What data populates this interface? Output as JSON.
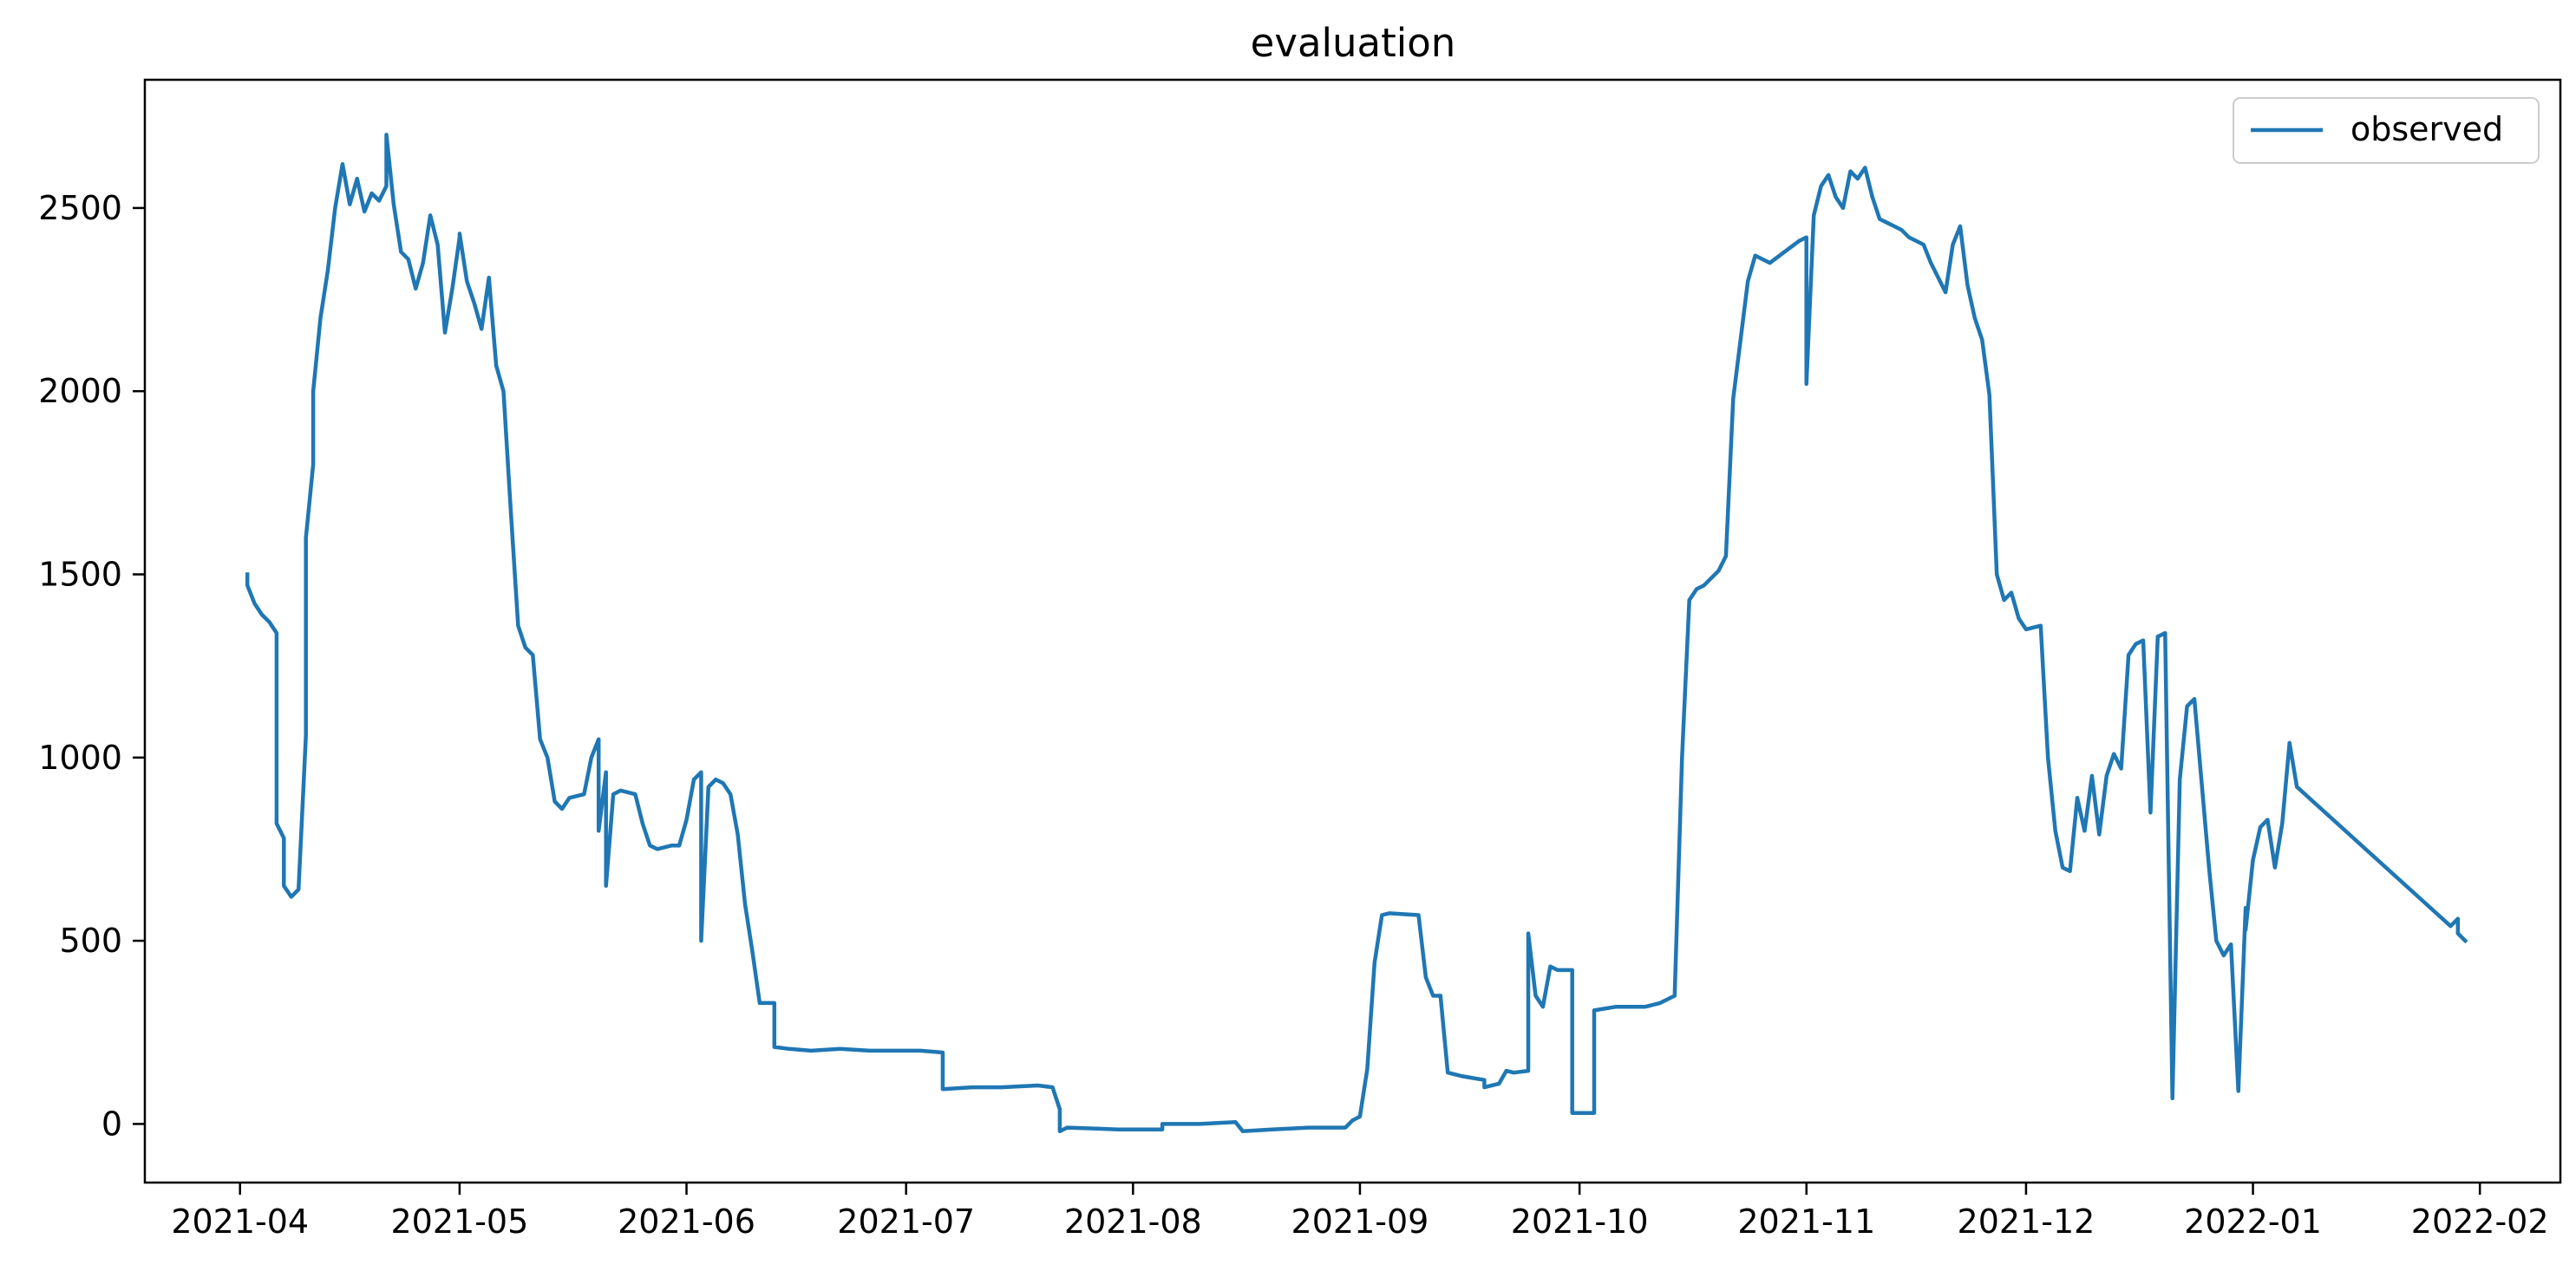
{
  "chart_data": {
    "type": "line",
    "title": "evaluation",
    "xlabel": "",
    "ylabel": "",
    "x_axis": "date",
    "xlim": [
      "2021-03-19",
      "2022-02-12"
    ],
    "ylim": [
      -160,
      2850
    ],
    "x_ticks": [
      "2021-04",
      "2021-05",
      "2021-06",
      "2021-07",
      "2021-08",
      "2021-09",
      "2021-10",
      "2021-11",
      "2021-12",
      "2022-01",
      "2022-02"
    ],
    "y_ticks": [
      0,
      500,
      1000,
      1500,
      2000,
      2500
    ],
    "grid": false,
    "legend": {
      "position": "upper right",
      "entries": [
        "observed"
      ]
    },
    "series": [
      {
        "name": "observed",
        "color": "#1f77b4",
        "points": [
          [
            "2021-04-02",
            1500
          ],
          [
            "2021-04-02",
            1500
          ],
          [
            "2021-04-02",
            1470
          ],
          [
            "2021-04-03",
            1420
          ],
          [
            "2021-04-04",
            1390
          ],
          [
            "2021-04-05",
            1370
          ],
          [
            "2021-04-06",
            1340
          ],
          [
            "2021-04-06",
            820
          ],
          [
            "2021-04-07",
            780
          ],
          [
            "2021-04-07",
            650
          ],
          [
            "2021-04-08",
            620
          ],
          [
            "2021-04-09",
            640
          ],
          [
            "2021-04-10",
            1060
          ],
          [
            "2021-04-10",
            1600
          ],
          [
            "2021-04-11",
            1800
          ],
          [
            "2021-04-11",
            2000
          ],
          [
            "2021-04-12",
            2200
          ],
          [
            "2021-04-13",
            2330
          ],
          [
            "2021-04-14",
            2500
          ],
          [
            "2021-04-15",
            2620
          ],
          [
            "2021-04-16",
            2510
          ],
          [
            "2021-04-17",
            2580
          ],
          [
            "2021-04-18",
            2490
          ],
          [
            "2021-04-19",
            2540
          ],
          [
            "2021-04-20",
            2520
          ],
          [
            "2021-04-21",
            2560
          ],
          [
            "2021-04-21",
            2700
          ],
          [
            "2021-04-22",
            2510
          ],
          [
            "2021-04-23",
            2380
          ],
          [
            "2021-04-24",
            2360
          ],
          [
            "2021-04-25",
            2280
          ],
          [
            "2021-04-26",
            2350
          ],
          [
            "2021-04-27",
            2480
          ],
          [
            "2021-04-28",
            2400
          ],
          [
            "2021-04-29",
            2160
          ],
          [
            "2021-04-30",
            2280
          ],
          [
            "2021-04-31",
            2420
          ],
          [
            "2021-05-01",
            2430
          ],
          [
            "2021-05-02",
            2300
          ],
          [
            "2021-05-03",
            2240
          ],
          [
            "2021-05-04",
            2170
          ],
          [
            "2021-05-05",
            2310
          ],
          [
            "2021-05-06",
            2070
          ],
          [
            "2021-05-07",
            2000
          ],
          [
            "2021-05-08",
            1670
          ],
          [
            "2021-05-09",
            1360
          ],
          [
            "2021-05-10",
            1300
          ],
          [
            "2021-05-11",
            1280
          ],
          [
            "2021-05-12",
            1050
          ],
          [
            "2021-05-13",
            1000
          ],
          [
            "2021-05-14",
            880
          ],
          [
            "2021-05-15",
            860
          ],
          [
            "2021-05-16",
            890
          ],
          [
            "2021-05-18",
            900
          ],
          [
            "2021-05-19",
            1000
          ],
          [
            "2021-05-20",
            1050
          ],
          [
            "2021-05-20",
            800
          ],
          [
            "2021-05-21",
            960
          ],
          [
            "2021-05-21",
            650
          ],
          [
            "2021-05-22",
            900
          ],
          [
            "2021-05-23",
            910
          ],
          [
            "2021-05-25",
            900
          ],
          [
            "2021-05-26",
            820
          ],
          [
            "2021-05-27",
            760
          ],
          [
            "2021-05-28",
            750
          ],
          [
            "2021-05-30",
            760
          ],
          [
            "2021-05-31",
            760
          ],
          [
            "2021-06-01",
            830
          ],
          [
            "2021-06-02",
            940
          ],
          [
            "2021-06-03",
            960
          ],
          [
            "2021-06-03",
            500
          ],
          [
            "2021-06-04",
            920
          ],
          [
            "2021-06-05",
            940
          ],
          [
            "2021-06-06",
            930
          ],
          [
            "2021-06-07",
            900
          ],
          [
            "2021-06-08",
            790
          ],
          [
            "2021-06-09",
            600
          ],
          [
            "2021-06-10",
            470
          ],
          [
            "2021-06-11",
            330
          ],
          [
            "2021-06-13",
            330
          ],
          [
            "2021-06-13",
            210
          ],
          [
            "2021-06-15",
            205
          ],
          [
            "2021-06-18",
            200
          ],
          [
            "2021-06-22",
            205
          ],
          [
            "2021-06-26",
            200
          ],
          [
            "2021-06-30",
            200
          ],
          [
            "2021-07-03",
            200
          ],
          [
            "2021-07-06",
            195
          ],
          [
            "2021-07-06",
            95
          ],
          [
            "2021-07-10",
            100
          ],
          [
            "2021-07-14",
            100
          ],
          [
            "2021-07-19",
            105
          ],
          [
            "2021-07-21",
            100
          ],
          [
            "2021-07-22",
            40
          ],
          [
            "2021-07-22",
            -20
          ],
          [
            "2021-07-23",
            -10
          ],
          [
            "2021-07-30",
            -15
          ],
          [
            "2021-08-05",
            -15
          ],
          [
            "2021-08-05",
            0
          ],
          [
            "2021-08-10",
            0
          ],
          [
            "2021-08-15",
            5
          ],
          [
            "2021-08-16",
            -20
          ],
          [
            "2021-08-20",
            -15
          ],
          [
            "2021-08-25",
            -10
          ],
          [
            "2021-08-30",
            -10
          ],
          [
            "2021-08-31",
            10
          ],
          [
            "2021-09-01",
            20
          ],
          [
            "2021-09-02",
            150
          ],
          [
            "2021-09-03",
            440
          ],
          [
            "2021-09-04",
            570
          ],
          [
            "2021-09-05",
            575
          ],
          [
            "2021-09-09",
            570
          ],
          [
            "2021-09-10",
            400
          ],
          [
            "2021-09-11",
            350
          ],
          [
            "2021-09-12",
            350
          ],
          [
            "2021-09-13",
            140
          ],
          [
            "2021-09-15",
            130
          ],
          [
            "2021-09-18",
            120
          ],
          [
            "2021-09-18",
            100
          ],
          [
            "2021-09-20",
            110
          ],
          [
            "2021-09-21",
            145
          ],
          [
            "2021-09-22",
            140
          ],
          [
            "2021-09-24",
            145
          ],
          [
            "2021-09-24",
            520
          ],
          [
            "2021-09-25",
            350
          ],
          [
            "2021-09-26",
            320
          ],
          [
            "2021-09-27",
            430
          ],
          [
            "2021-09-28",
            420
          ],
          [
            "2021-09-30",
            420
          ],
          [
            "2021-09-30",
            30
          ],
          [
            "2021-10-01",
            30
          ],
          [
            "2021-10-03",
            30
          ],
          [
            "2021-10-03",
            310
          ],
          [
            "2021-10-06",
            320
          ],
          [
            "2021-10-10",
            320
          ],
          [
            "2021-10-12",
            330
          ],
          [
            "2021-10-14",
            350
          ],
          [
            "2021-10-15",
            1000
          ],
          [
            "2021-10-16",
            1430
          ],
          [
            "2021-10-17",
            1460
          ],
          [
            "2021-10-18",
            1470
          ],
          [
            "2021-10-20",
            1510
          ],
          [
            "2021-10-21",
            1550
          ],
          [
            "2021-10-22",
            1980
          ],
          [
            "2021-10-24",
            2300
          ],
          [
            "2021-10-25",
            2370
          ],
          [
            "2021-10-27",
            2350
          ],
          [
            "2021-10-29",
            2380
          ],
          [
            "2021-10-31",
            2410
          ],
          [
            "2021-11-01",
            2420
          ],
          [
            "2021-11-01",
            2020
          ],
          [
            "2021-11-02",
            2480
          ],
          [
            "2021-11-03",
            2560
          ],
          [
            "2021-11-04",
            2590
          ],
          [
            "2021-11-05",
            2530
          ],
          [
            "2021-11-06",
            2500
          ],
          [
            "2021-11-07",
            2600
          ],
          [
            "2021-11-08",
            2580
          ],
          [
            "2021-11-09",
            2610
          ],
          [
            "2021-11-10",
            2530
          ],
          [
            "2021-11-11",
            2470
          ],
          [
            "2021-11-12",
            2460
          ],
          [
            "2021-11-13",
            2450
          ],
          [
            "2021-11-14",
            2440
          ],
          [
            "2021-11-15",
            2420
          ],
          [
            "2021-11-16",
            2410
          ],
          [
            "2021-11-17",
            2400
          ],
          [
            "2021-11-18",
            2350
          ],
          [
            "2021-11-19",
            2310
          ],
          [
            "2021-11-20",
            2270
          ],
          [
            "2021-11-21",
            2400
          ],
          [
            "2021-11-22",
            2450
          ],
          [
            "2021-11-23",
            2290
          ],
          [
            "2021-11-24",
            2200
          ],
          [
            "2021-11-25",
            2140
          ],
          [
            "2021-11-26",
            1990
          ],
          [
            "2021-11-27",
            1500
          ],
          [
            "2021-11-28",
            1430
          ],
          [
            "2021-11-29",
            1450
          ],
          [
            "2021-11-30",
            1380
          ],
          [
            "2021-12-01",
            1350
          ],
          [
            "2021-12-03",
            1360
          ],
          [
            "2021-12-04",
            1000
          ],
          [
            "2021-12-05",
            800
          ],
          [
            "2021-12-06",
            700
          ],
          [
            "2021-12-07",
            690
          ],
          [
            "2021-12-08",
            890
          ],
          [
            "2021-12-09",
            800
          ],
          [
            "2021-12-10",
            950
          ],
          [
            "2021-12-11",
            790
          ],
          [
            "2021-12-12",
            950
          ],
          [
            "2021-12-13",
            1010
          ],
          [
            "2021-12-14",
            970
          ],
          [
            "2021-12-15",
            1280
          ],
          [
            "2021-12-16",
            1310
          ],
          [
            "2021-12-17",
            1320
          ],
          [
            "2021-12-18",
            850
          ],
          [
            "2021-12-19",
            1330
          ],
          [
            "2021-12-20",
            1340
          ],
          [
            "2021-12-21",
            70
          ],
          [
            "2021-12-22",
            940
          ],
          [
            "2021-12-23",
            1140
          ],
          [
            "2021-12-24",
            1160
          ],
          [
            "2021-12-26",
            700
          ],
          [
            "2021-12-27",
            500
          ],
          [
            "2021-12-28",
            460
          ],
          [
            "2021-12-29",
            490
          ],
          [
            "2021-12-30",
            90
          ],
          [
            "2021-12-31",
            590
          ],
          [
            "2021-12-31",
            530
          ],
          [
            "2022-01-01",
            720
          ],
          [
            "2022-01-02",
            810
          ],
          [
            "2022-01-03",
            830
          ],
          [
            "2022-01-04",
            700
          ],
          [
            "2022-01-05",
            820
          ],
          [
            "2022-01-06",
            1040
          ],
          [
            "2022-01-07",
            920
          ],
          [
            "2022-01-28",
            540
          ],
          [
            "2022-01-29",
            560
          ],
          [
            "2022-01-29",
            520
          ],
          [
            "2022-01-30",
            500
          ]
        ]
      }
    ]
  }
}
